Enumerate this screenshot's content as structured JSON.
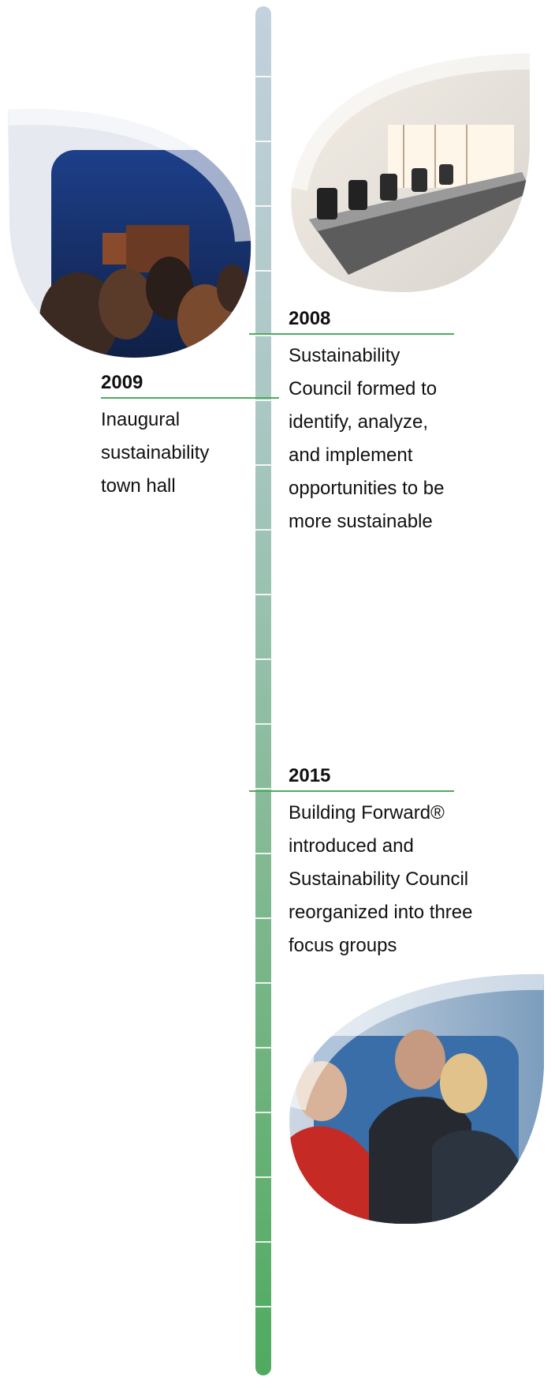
{
  "colors": {
    "stem_top": "#c4d1de",
    "stem_bottom": "#4fab5f",
    "rule": "#4fab5f",
    "text": "#111111"
  },
  "events": [
    {
      "year": "2008",
      "description": "Sustainability Council formed to identify, analyze, and implement opportunities to be more sustainable"
    },
    {
      "year": "2009",
      "description": "Inaugural sustainability town hall"
    },
    {
      "year": "2015",
      "description": "Building Forward® introduced and Sustainability Council reorganized into three focus groups"
    }
  ],
  "photos": [
    {
      "name": "town-hall-audience-photo"
    },
    {
      "name": "conference-room-photo"
    },
    {
      "name": "team-meeting-photo"
    }
  ]
}
